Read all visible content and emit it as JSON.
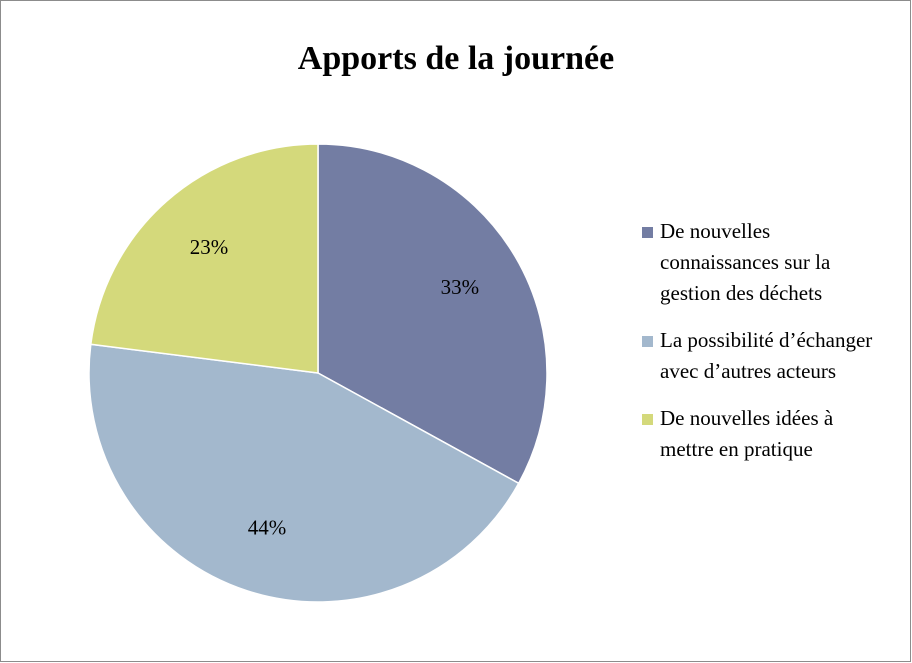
{
  "chart_data": {
    "type": "pie",
    "title": "Apports de la journée",
    "categories": [
      "De nouvelles connaissances sur la gestion des déchets",
      "La possibilité d’échanger avec d’autres acteurs",
      "De nouvelles idées à mettre en pratique"
    ],
    "values": [
      33,
      44,
      23
    ],
    "value_labels": [
      "33%",
      "44%",
      "23%"
    ],
    "colors": [
      "#737da3",
      "#a3b8cd",
      "#d4d97b"
    ],
    "legend": "right"
  }
}
